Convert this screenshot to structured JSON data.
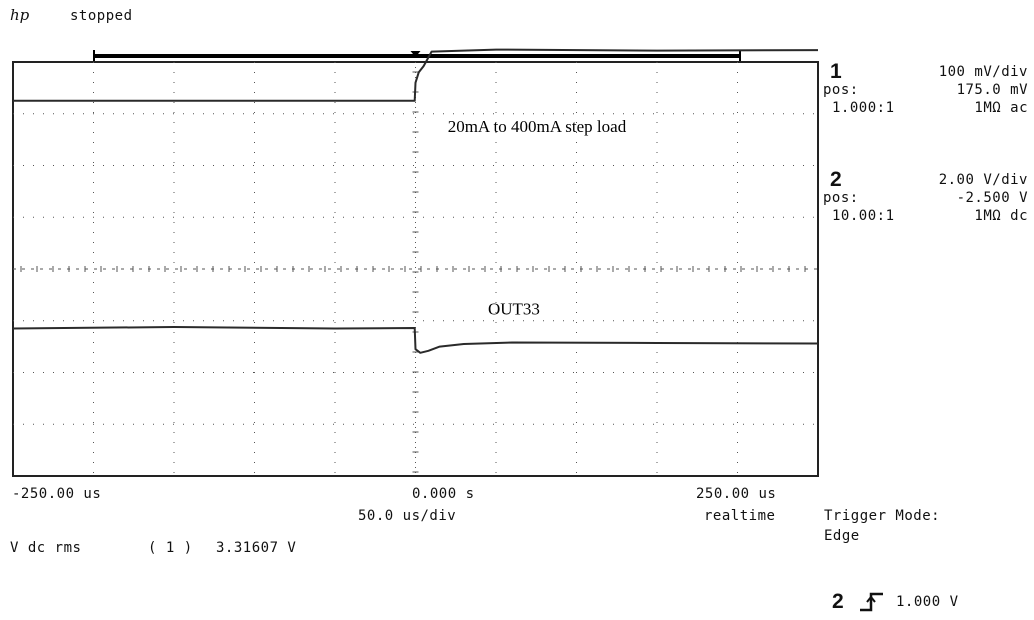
{
  "status": {
    "logo": "hp",
    "state": "stopped"
  },
  "channel1": {
    "number": "1",
    "scale": "100  mV/div",
    "pos_label": "pos:",
    "pos_value": "175.0 mV",
    "probe": "1.000:1",
    "coupling": "1MΩ ac"
  },
  "channel2": {
    "number": "2",
    "scale": "2.00  V/div",
    "pos_label": "pos:",
    "pos_value": "-2.500  V",
    "probe": "10.00:1",
    "coupling": "1MΩ dc"
  },
  "time_axis": {
    "left": "-250.00 us",
    "center": "0.000  s",
    "right": "250.00 us",
    "timebase": "50.0 us/div",
    "mode": "realtime"
  },
  "measurement": {
    "label": "V dc rms",
    "channel": "( 1 )",
    "value": "3.31607 V"
  },
  "trigger": {
    "mode_label": "Trigger Mode:",
    "mode_value": "Edge",
    "source": "2",
    "slope_icon": "rising-edge-icon",
    "level": "1.000  V"
  },
  "colors": {
    "trace": "#2a2a2a",
    "grid": "#555555",
    "frame": "#222222"
  },
  "chart_data": {
    "type": "line",
    "x_unit": "us",
    "xlim": [
      -250,
      250
    ],
    "divisions": {
      "x": 10,
      "y": 8
    },
    "grid": true,
    "annotations": [
      "20mA to 400mA step load",
      "OUT33"
    ],
    "series": [
      {
        "x": [
          -250,
          -150,
          -50,
          -0.5,
          0,
          2,
          5,
          10,
          50,
          150,
          250
        ],
        "y_div": [
          3.25,
          3.25,
          3.25,
          3.25,
          3.6,
          3.8,
          3.92,
          4.2,
          4.24,
          4.22,
          4.23
        ]
      },
      {
        "x": [
          -250,
          -150,
          -50,
          -0.5,
          0,
          3,
          8,
          15,
          30,
          60,
          150,
          250
        ],
        "y_div": [
          -1.15,
          -1.12,
          -1.15,
          -1.14,
          -1.55,
          -1.62,
          -1.58,
          -1.5,
          -1.45,
          -1.42,
          -1.43,
          -1.44
        ]
      }
    ]
  }
}
